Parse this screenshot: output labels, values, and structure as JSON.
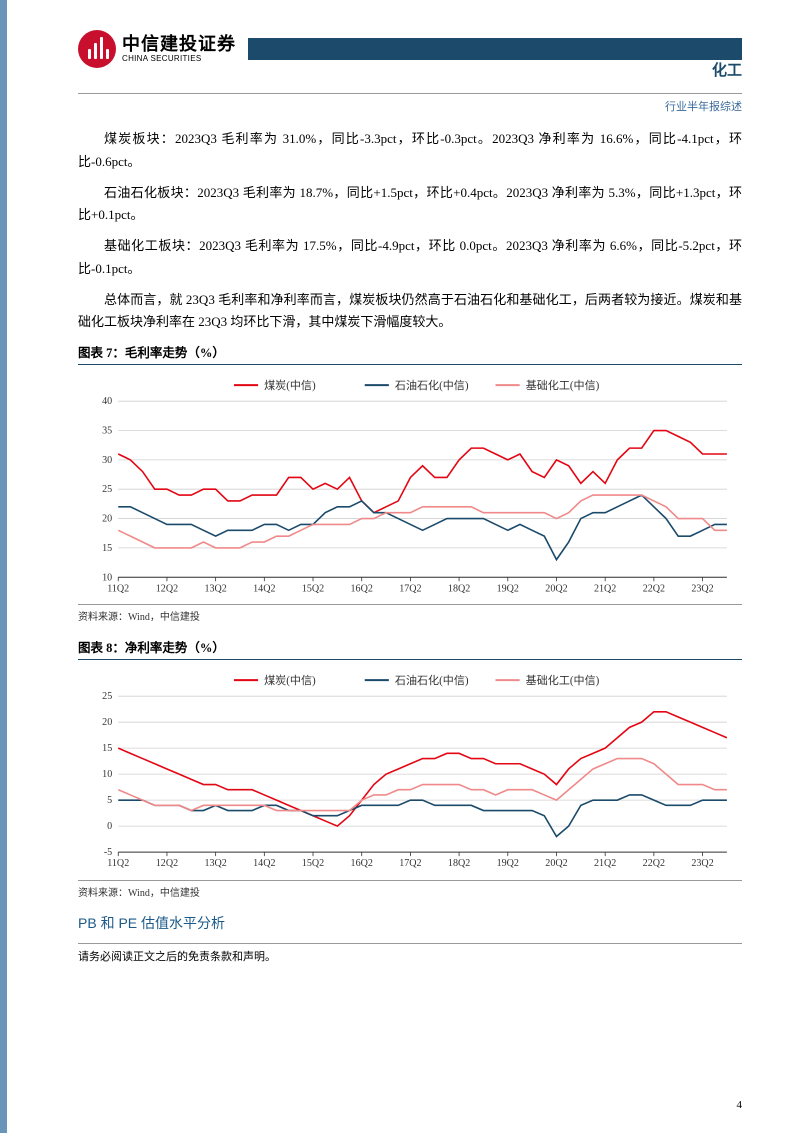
{
  "header": {
    "logo_cn": "中信建投证券",
    "logo_en": "CHINA SECURITIES",
    "category": "化工",
    "subheader": "行业半年报综述"
  },
  "paragraphs": {
    "p1": "煤炭板块：2023Q3 毛利率为 31.0%，同比-3.3pct，环比-0.3pct。2023Q3 净利率为 16.6%，同比-4.1pct，环比-0.6pct。",
    "p2": "石油石化板块：2023Q3 毛利率为 18.7%，同比+1.5pct，环比+0.4pct。2023Q3 净利率为 5.3%，同比+1.3pct，环比+0.1pct。",
    "p3": "基础化工板块：2023Q3 毛利率为 17.5%，同比-4.9pct，环比 0.0pct。2023Q3 净利率为 6.6%，同比-5.2pct，环比-0.1pct。",
    "p4": "总体而言，就 23Q3 毛利率和净利率而言，煤炭板块仍然高于石油石化和基础化工，后两者较为接近。煤炭和基础化工板块净利率在 23Q3 均环比下滑，其中煤炭下滑幅度较大。"
  },
  "chart7": {
    "title": "图表 7：毛利率走势（%）",
    "type": "line",
    "legend": [
      "煤炭(中信)",
      "石油石化(中信)",
      "基础化工(中信)"
    ],
    "colors": [
      "#e30613",
      "#1b4a6b",
      "#f08a8a"
    ],
    "x_labels": [
      "11Q2",
      "12Q2",
      "13Q2",
      "14Q2",
      "15Q2",
      "16Q2",
      "17Q2",
      "18Q2",
      "19Q2",
      "20Q2",
      "21Q2",
      "22Q2",
      "23Q2"
    ],
    "y_ticks": [
      10,
      15,
      20,
      25,
      30,
      35,
      40
    ],
    "ylim": [
      10,
      40
    ],
    "grid_color": "#d0d0d0",
    "background": "#ffffff",
    "series": {
      "coal": [
        31,
        30,
        28,
        25,
        25,
        24,
        24,
        25,
        25,
        23,
        23,
        24,
        24,
        24,
        27,
        27,
        25,
        26,
        25,
        27,
        23,
        21,
        22,
        23,
        27,
        29,
        27,
        27,
        30,
        32,
        32,
        31,
        30,
        31,
        28,
        27,
        30,
        29,
        26,
        28,
        26,
        30,
        32,
        32,
        35,
        35,
        34,
        33,
        31,
        31,
        31
      ],
      "petro": [
        22,
        22,
        21,
        20,
        19,
        19,
        19,
        18,
        17,
        18,
        18,
        18,
        19,
        19,
        18,
        19,
        19,
        21,
        22,
        22,
        23,
        21,
        21,
        20,
        19,
        18,
        19,
        20,
        20,
        20,
        20,
        19,
        18,
        19,
        18,
        17,
        13,
        16,
        20,
        21,
        21,
        22,
        23,
        24,
        22,
        20,
        17,
        17,
        18,
        19,
        19
      ],
      "chem": [
        18,
        17,
        16,
        15,
        15,
        15,
        15,
        16,
        15,
        15,
        15,
        16,
        16,
        17,
        17,
        18,
        19,
        19,
        19,
        19,
        20,
        20,
        21,
        21,
        21,
        22,
        22,
        22,
        22,
        22,
        21,
        21,
        21,
        21,
        21,
        21,
        20,
        21,
        23,
        24,
        24,
        24,
        24,
        24,
        23,
        22,
        20,
        20,
        20,
        18,
        18
      ]
    },
    "source": "资料来源：Wind，中信建投"
  },
  "chart8": {
    "title": "图表 8：净利率走势（%）",
    "type": "line",
    "legend": [
      "煤炭(中信)",
      "石油石化(中信)",
      "基础化工(中信)"
    ],
    "colors": [
      "#e30613",
      "#1b4a6b",
      "#f08a8a"
    ],
    "x_labels": [
      "11Q2",
      "12Q2",
      "13Q2",
      "14Q2",
      "15Q2",
      "16Q2",
      "17Q2",
      "18Q2",
      "19Q2",
      "20Q2",
      "21Q2",
      "22Q2",
      "23Q2"
    ],
    "y_ticks": [
      -5,
      0,
      5,
      10,
      15,
      20,
      25
    ],
    "ylim": [
      -5,
      25
    ],
    "grid_color": "#d0d0d0",
    "background": "#ffffff",
    "series": {
      "coal": [
        15,
        14,
        13,
        12,
        11,
        10,
        9,
        8,
        8,
        7,
        7,
        7,
        6,
        5,
        4,
        3,
        2,
        1,
        0,
        2,
        5,
        8,
        10,
        11,
        12,
        13,
        13,
        14,
        14,
        13,
        13,
        12,
        12,
        12,
        11,
        10,
        8,
        11,
        13,
        14,
        15,
        17,
        19,
        20,
        22,
        22,
        21,
        20,
        19,
        18,
        17
      ],
      "petro": [
        5,
        5,
        5,
        4,
        4,
        4,
        3,
        3,
        4,
        3,
        3,
        3,
        4,
        4,
        3,
        3,
        2,
        2,
        2,
        3,
        4,
        4,
        4,
        4,
        5,
        5,
        4,
        4,
        4,
        4,
        3,
        3,
        3,
        3,
        3,
        2,
        -2,
        0,
        4,
        5,
        5,
        5,
        6,
        6,
        5,
        4,
        4,
        4,
        5,
        5,
        5
      ],
      "chem": [
        7,
        6,
        5,
        4,
        4,
        4,
        3,
        4,
        4,
        4,
        4,
        4,
        4,
        3,
        3,
        3,
        3,
        3,
        3,
        3,
        5,
        6,
        6,
        7,
        7,
        8,
        8,
        8,
        8,
        7,
        7,
        6,
        7,
        7,
        7,
        6,
        5,
        7,
        9,
        11,
        12,
        13,
        13,
        13,
        12,
        10,
        8,
        8,
        8,
        7,
        7
      ]
    },
    "source": "资料来源：Wind，中信建投"
  },
  "section": {
    "title": "PB 和 PE 估值水平分析"
  },
  "footer": {
    "disclaimer": "请务必阅读正文之后的免责条款和声明。",
    "page": "4"
  }
}
